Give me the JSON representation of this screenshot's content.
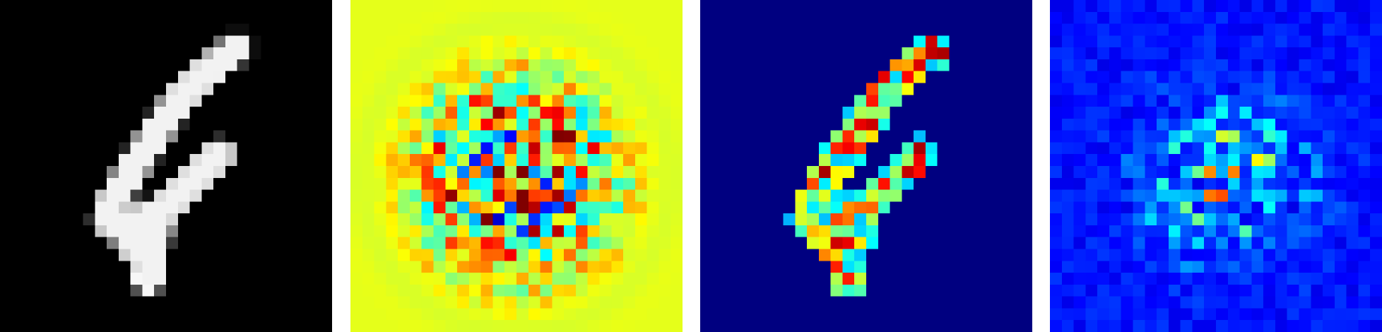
{
  "figure": {
    "grid_size": [
      28,
      28
    ],
    "panels": [
      {
        "id": "input-image",
        "colormap": "gray",
        "background": "#000000"
      },
      {
        "id": "signed-attribution-map",
        "colormap": "jet",
        "background": "#a0ff55"
      },
      {
        "id": "positive-attribution-map",
        "colormap": "jet",
        "background": "#000080"
      },
      {
        "id": "noisy-attribution-map",
        "colormap": "jet",
        "background": "#0000a8"
      }
    ]
  }
}
